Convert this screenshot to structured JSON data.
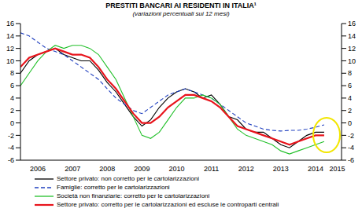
{
  "chart_data": {
    "type": "line",
    "title": "PRESTITI BANCARI AI RESIDENTI IN ITALIA¹",
    "subtitle": "(variazioni percentuali sui 12 mesi)",
    "x": [
      2006.0,
      2006.25,
      2006.5,
      2006.75,
      2007.0,
      2007.25,
      2007.5,
      2007.75,
      2008.0,
      2008.25,
      2008.5,
      2008.75,
      2009.0,
      2009.25,
      2009.5,
      2009.75,
      2010.0,
      2010.25,
      2010.5,
      2010.75,
      2011.0,
      2011.25,
      2011.5,
      2011.75,
      2012.0,
      2012.25,
      2012.5,
      2012.75,
      2013.0,
      2013.25,
      2013.5,
      2013.75,
      2014.0,
      2014.25,
      2014.5,
      2014.75
    ],
    "series": [
      {
        "name": "Settore privato: non corretto per le cartolarizzazioni",
        "color": "#000000",
        "line_style": "solid",
        "values": [
          8,
          10,
          11,
          11.5,
          12,
          11,
          10.5,
          10,
          10,
          8.5,
          6.5,
          5,
          3,
          1,
          -0.5,
          0.5,
          2.5,
          4,
          5,
          5.5,
          5,
          4,
          4.5,
          3,
          1,
          0.5,
          -1,
          -1.5,
          -1.5,
          -2.5,
          -3.5,
          -4,
          -3,
          -2,
          -1.5,
          -1.5
        ]
      },
      {
        "name": "Famiglie: corretto per le cartolarizzazioni",
        "color": "#1f3fbf",
        "line_style": "dashed",
        "values": [
          14.5,
          14,
          13,
          12,
          11.5,
          11,
          10,
          9,
          8,
          7,
          5.5,
          4,
          3,
          2,
          1.5,
          2.5,
          3.5,
          4.5,
          5,
          5.5,
          5,
          4.5,
          4,
          3,
          2,
          1,
          0,
          -0.5,
          -1,
          -1.2,
          -1.3,
          -1.2,
          -1.2,
          -1,
          -0.7,
          -0.3
        ]
      },
      {
        "name": "Società non finanziarie: corretto per le cartolarizzazioni",
        "color": "#22c02a",
        "line_style": "solid",
        "values": [
          6,
          8,
          10,
          11.5,
          12.5,
          12,
          12.5,
          12.5,
          12,
          11,
          9,
          7,
          4,
          1,
          -2,
          -2.5,
          -1.5,
          0.5,
          2.5,
          4,
          4,
          4.5,
          4,
          3,
          1,
          -1,
          -2,
          -2.5,
          -3,
          -3.5,
          -4.5,
          -5,
          -4.5,
          -4,
          -3.5,
          -3
        ]
      },
      {
        "name": "Settore privato: corretto per le cartolarizzazioni ed escluse le controparti centrali",
        "color": "#e8141c",
        "line_style": "solid",
        "values": [
          9,
          10.5,
          11,
          11.5,
          12,
          11.5,
          11,
          11,
          10.5,
          9,
          7,
          5.5,
          3.5,
          1.5,
          0,
          0,
          1,
          2.5,
          3.5,
          4.5,
          4.5,
          4,
          3.5,
          2.5,
          1,
          -0.5,
          -1,
          -1.5,
          -2,
          -2.5,
          -3,
          -3.5,
          -3,
          -2.5,
          -2,
          -2
        ]
      }
    ],
    "xlim": [
      2006,
      2015.25
    ],
    "xticks": [
      {
        "value": 2006.5,
        "label": "2006"
      },
      {
        "value": 2007.5,
        "label": "2007"
      },
      {
        "value": 2008.5,
        "label": "2008"
      },
      {
        "value": 2009.5,
        "label": "2009"
      },
      {
        "value": 2010.5,
        "label": "2010"
      },
      {
        "value": 2011.5,
        "label": "2011"
      },
      {
        "value": 2012.5,
        "label": "2012"
      },
      {
        "value": 2013.5,
        "label": "2013"
      },
      {
        "value": 2014.5,
        "label": "2014"
      },
      {
        "value": 2015.125,
        "label": "2015"
      }
    ],
    "ylim": [
      -6,
      16
    ],
    "yticks": [
      -6,
      -4,
      -2,
      0,
      2,
      4,
      6,
      8,
      10,
      12,
      14,
      16
    ],
    "y2lim": [
      -6,
      16
    ],
    "y2ticks": [
      -6,
      -4,
      -2,
      0,
      2,
      4,
      6,
      8,
      10,
      12,
      14,
      16
    ],
    "grid": false
  }
}
